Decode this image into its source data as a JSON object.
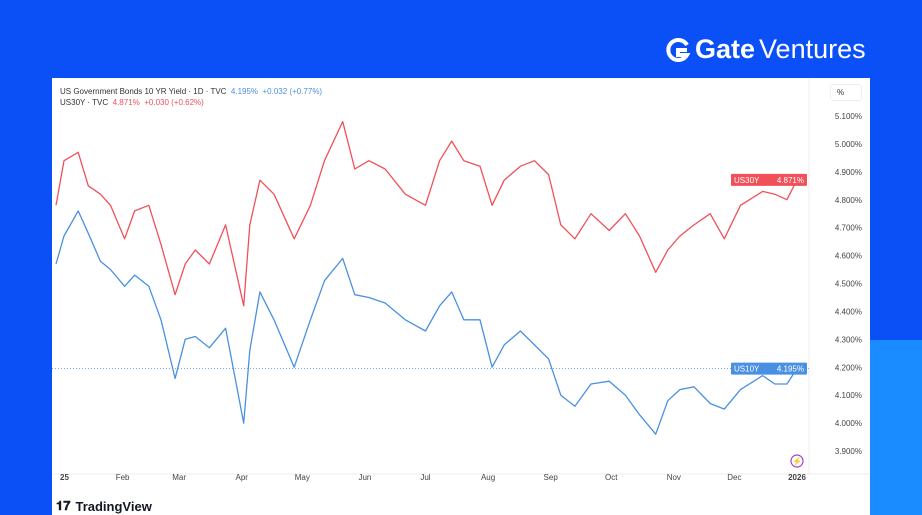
{
  "brand": {
    "logo_text_bold": "Gate",
    "logo_text": "Ventures",
    "footer": "TradingView"
  },
  "legend": {
    "line1": {
      "label": "US Government Bonds 10 YR Yield · 1D · TVC",
      "value": "4.195%",
      "change": "+0.032 (+0.77%)",
      "color": "#4a90e2"
    },
    "line2": {
      "label": "US30Y · TVC",
      "value": "4.871%",
      "change": "+0.030 (+0.62%)",
      "color": "#f0505a"
    }
  },
  "scale_button": "%",
  "chart_data": {
    "type": "line",
    "ylim": [
      3.85,
      5.15
    ],
    "yticks": [
      3.9,
      4.0,
      4.1,
      4.2,
      4.3,
      4.4,
      4.5,
      4.6,
      4.7,
      4.8,
      4.9,
      5.0,
      5.1
    ],
    "ytick_labels": [
      "3.900%",
      "4.000%",
      "4.100%",
      "4.200%",
      "4.300%",
      "4.400%",
      "4.500%",
      "4.600%",
      "4.700%",
      "4.800%",
      "4.900%",
      "5.000%",
      "5.100%"
    ],
    "xticks": [
      {
        "date": "2025-01-01",
        "label": "25"
      },
      {
        "date": "2025-02-01",
        "label": "Feb"
      },
      {
        "date": "2025-03-01",
        "label": "Mar"
      },
      {
        "date": "2025-04-01",
        "label": "Apr"
      },
      {
        "date": "2025-05-01",
        "label": "May"
      },
      {
        "date": "2025-06-01",
        "label": "Jun"
      },
      {
        "date": "2025-07-01",
        "label": "Jul"
      },
      {
        "date": "2025-08-01",
        "label": "Aug"
      },
      {
        "date": "2025-09-01",
        "label": "Sep"
      },
      {
        "date": "2025-10-01",
        "label": "Oct"
      },
      {
        "date": "2025-11-01",
        "label": "Nov"
      },
      {
        "date": "2025-12-01",
        "label": "Dec"
      },
      {
        "date": "2026-01-01",
        "label": "2026"
      }
    ],
    "x": [
      "2024-12-30",
      "2025-01-03",
      "2025-01-10",
      "2025-01-15",
      "2025-01-21",
      "2025-01-26",
      "2025-02-02",
      "2025-02-07",
      "2025-02-14",
      "2025-02-20",
      "2025-02-27",
      "2025-03-04",
      "2025-03-09",
      "2025-03-16",
      "2025-03-24",
      "2025-04-02",
      "2025-04-05",
      "2025-04-10",
      "2025-04-17",
      "2025-04-27",
      "2025-05-05",
      "2025-05-12",
      "2025-05-21",
      "2025-05-27",
      "2025-06-03",
      "2025-06-11",
      "2025-06-21",
      "2025-07-01",
      "2025-07-08",
      "2025-07-14",
      "2025-07-20",
      "2025-07-28",
      "2025-08-03",
      "2025-08-09",
      "2025-08-17",
      "2025-08-24",
      "2025-08-31",
      "2025-09-06",
      "2025-09-13",
      "2025-09-21",
      "2025-09-30",
      "2025-10-08",
      "2025-10-15",
      "2025-10-23",
      "2025-10-29",
      "2025-11-04",
      "2025-11-11",
      "2025-11-19",
      "2025-11-26",
      "2025-12-04",
      "2025-12-15",
      "2025-12-21",
      "2025-12-27",
      "2026-01-01"
    ],
    "series": [
      {
        "name": "US30Y",
        "color": "#f0505a",
        "last": "4.871%",
        "values": [
          4.78,
          4.94,
          4.97,
          4.85,
          4.82,
          4.78,
          4.66,
          4.76,
          4.78,
          4.64,
          4.46,
          4.57,
          4.62,
          4.57,
          4.71,
          4.42,
          4.71,
          4.87,
          4.82,
          4.66,
          4.78,
          4.94,
          5.08,
          4.91,
          4.94,
          4.91,
          4.82,
          4.78,
          4.94,
          5.01,
          4.94,
          4.92,
          4.78,
          4.87,
          4.92,
          4.94,
          4.89,
          4.71,
          4.66,
          4.75,
          4.69,
          4.75,
          4.67,
          4.54,
          4.62,
          4.67,
          4.71,
          4.75,
          4.66,
          4.78,
          4.83,
          4.82,
          4.8,
          4.871
        ]
      },
      {
        "name": "US10Y",
        "color": "#4a90e2",
        "last": "4.195%",
        "values": [
          4.57,
          4.67,
          4.76,
          4.68,
          4.58,
          4.55,
          4.49,
          4.53,
          4.49,
          4.37,
          4.16,
          4.3,
          4.31,
          4.27,
          4.34,
          4.0,
          4.26,
          4.47,
          4.37,
          4.2,
          4.37,
          4.51,
          4.59,
          4.46,
          4.45,
          4.43,
          4.37,
          4.33,
          4.42,
          4.47,
          4.37,
          4.37,
          4.2,
          4.28,
          4.33,
          4.28,
          4.23,
          4.1,
          4.06,
          4.14,
          4.15,
          4.1,
          4.03,
          3.96,
          4.08,
          4.12,
          4.13,
          4.07,
          4.05,
          4.12,
          4.17,
          4.14,
          4.14,
          4.195
        ]
      }
    ]
  }
}
